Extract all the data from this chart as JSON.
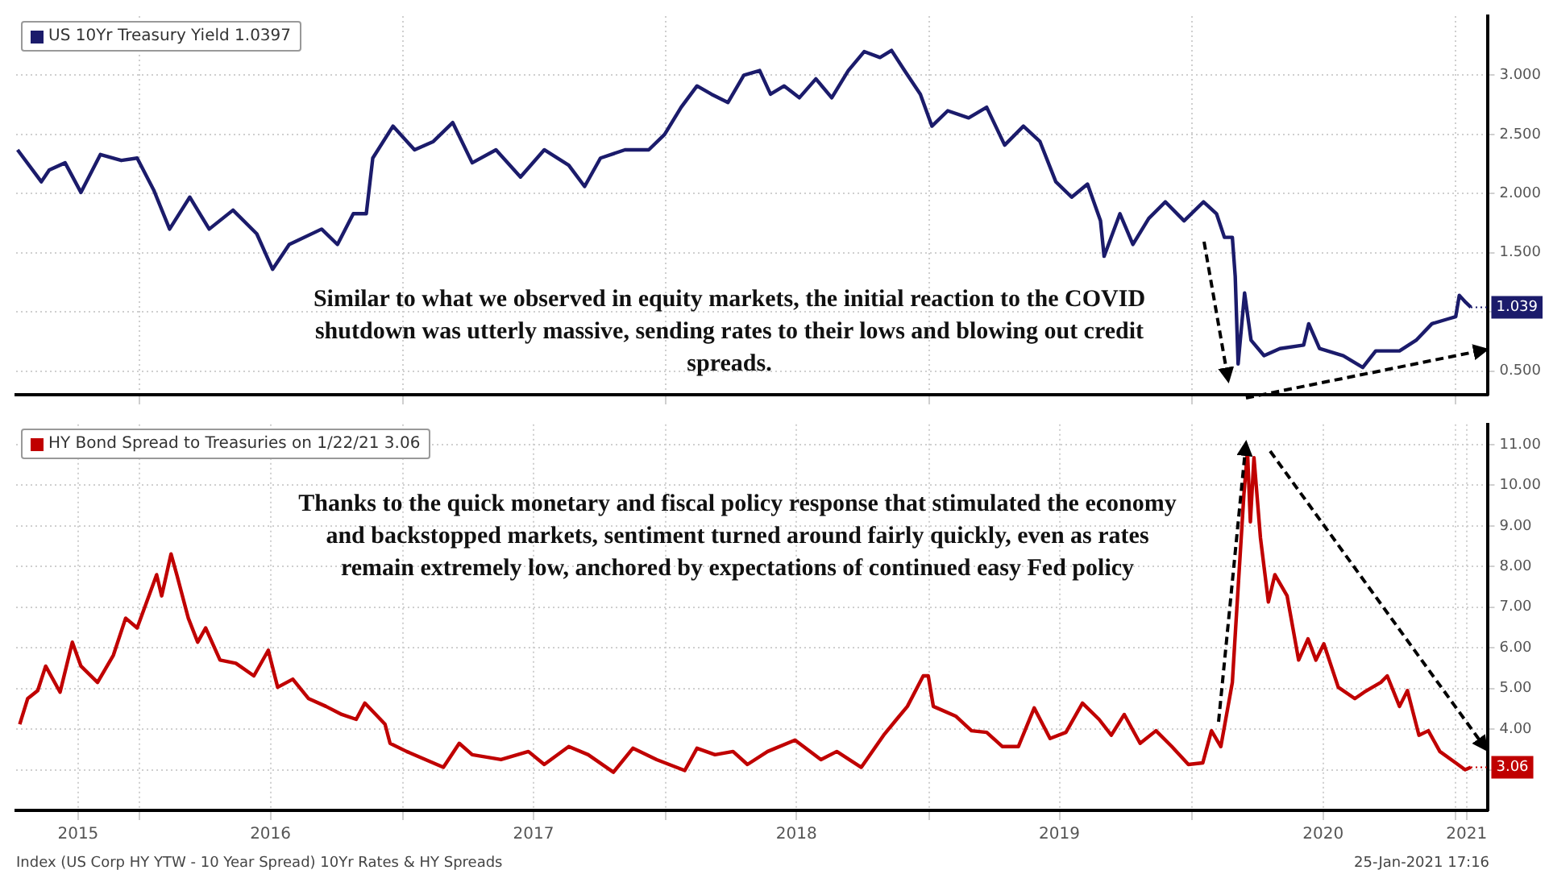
{
  "chart_data": [
    {
      "type": "line",
      "legend": "top left",
      "grid": true,
      "marker": "none",
      "tick_labels": "y",
      "xlim": [
        "2015-07-14",
        "2021-02-15"
      ],
      "xticks": [
        {
          "value": "2016-01-01",
          "label": null
        },
        {
          "value": "2017-01-01",
          "label": null
        },
        {
          "value": "2018-01-01",
          "label": null
        },
        {
          "value": "2019-01-01",
          "label": null
        },
        {
          "value": "2020-01-01",
          "label": null
        },
        {
          "value": "2021-01-01",
          "label": null
        }
      ],
      "ylim": [
        0.3,
        3.5
      ],
      "yticks": [
        {
          "value": 0.5,
          "label": "0.500"
        },
        {
          "value": 1,
          "label": null
        },
        {
          "value": 1.5,
          "label": "1.500"
        },
        {
          "value": 2,
          "label": "2.000"
        },
        {
          "value": 2.5,
          "label": "2.500"
        },
        {
          "value": 3,
          "label": "3.000"
        }
      ],
      "series": [
        {
          "name": "US 10Yr Treasury Yield 1.0397",
          "color": "#1b1b6b",
          "x": [
            "2015-07-16",
            "2015-08-18",
            "2015-08-29",
            "2015-09-20",
            "2015-10-12",
            "2015-11-08",
            "2015-12-07",
            "2015-12-29",
            "2016-01-21",
            "2016-02-12",
            "2016-03-11",
            "2016-04-07",
            "2016-05-10",
            "2016-06-12",
            "2016-07-04",
            "2016-07-27",
            "2016-09-10",
            "2016-10-02",
            "2016-10-24",
            "2016-11-11",
            "2016-11-20",
            "2016-12-18",
            "2017-01-17",
            "2017-02-12",
            "2017-03-11",
            "2017-04-07",
            "2017-05-10",
            "2017-06-13",
            "2017-07-16",
            "2017-08-19",
            "2017-09-10",
            "2017-10-02",
            "2017-11-05",
            "2017-12-08",
            "2017-12-30",
            "2018-01-22",
            "2018-02-13",
            "2018-03-05",
            "2018-03-28",
            "2018-04-19",
            "2018-05-11",
            "2018-05-26",
            "2018-06-14",
            "2018-07-05",
            "2018-07-28",
            "2018-08-19",
            "2018-09-11",
            "2018-10-03",
            "2018-10-25",
            "2018-11-10",
            "2018-11-28",
            "2018-12-20",
            "2019-01-05",
            "2019-01-27",
            "2019-02-25",
            "2019-03-22",
            "2019-04-16",
            "2019-05-12",
            "2019-06-04",
            "2019-06-26",
            "2019-07-18",
            "2019-08-09",
            "2019-08-27",
            "2019-09-01",
            "2019-09-23",
            "2019-10-11",
            "2019-11-02",
            "2019-11-25",
            "2019-12-21",
            "2020-01-17",
            "2020-02-04",
            "2020-02-15",
            "2020-02-26",
            "2020-03-01",
            "2020-03-05",
            "2020-03-14",
            "2020-03-23",
            "2020-04-10",
            "2020-05-02",
            "2020-06-04",
            "2020-06-11",
            "2020-06-26",
            "2020-07-29",
            "2020-08-25",
            "2020-09-12",
            "2020-10-15",
            "2020-11-07",
            "2020-11-29",
            "2020-12-21",
            "2021-01-01",
            "2021-01-06",
            "2021-01-15",
            "2021-01-22"
          ],
          "values": [
            2.37,
            2.1,
            2.2,
            2.26,
            2.01,
            2.33,
            2.28,
            2.3,
            2.03,
            1.7,
            1.97,
            1.7,
            1.86,
            1.66,
            1.36,
            1.57,
            1.7,
            1.57,
            1.83,
            1.83,
            2.3,
            2.57,
            2.37,
            2.44,
            2.6,
            2.26,
            2.37,
            2.14,
            2.37,
            2.24,
            2.06,
            2.3,
            2.37,
            2.37,
            2.5,
            2.73,
            2.91,
            2.84,
            2.77,
            3.0,
            3.04,
            2.84,
            2.91,
            2.81,
            2.97,
            2.81,
            3.04,
            3.2,
            3.15,
            3.21,
            3.04,
            2.84,
            2.57,
            2.7,
            2.64,
            2.73,
            2.41,
            2.57,
            2.44,
            2.1,
            1.97,
            2.08,
            1.77,
            1.47,
            1.83,
            1.57,
            1.79,
            1.93,
            1.77,
            1.93,
            1.83,
            1.63,
            1.63,
            1.3,
            0.56,
            1.16,
            0.76,
            0.63,
            0.69,
            0.72,
            0.9,
            0.69,
            0.63,
            0.53,
            0.67,
            0.67,
            0.76,
            0.9,
            0.94,
            0.96,
            1.14,
            1.08,
            1.04
          ]
        }
      ],
      "annotations": [
        "Similar to what we observed in equity markets, the initial reaction to the COVID shutdown was utterly massive, sending rates to their lows and blowing out credit spreads.",
        {
          "text": "1.039",
          "x": "2021-01-22",
          "y": 1.039
        }
      ]
    },
    {
      "type": "line",
      "legend": "top left",
      "grid": true,
      "marker": "none",
      "xlim": [
        "2015-07-14",
        "2021-02-15"
      ],
      "xticks": [
        {
          "value": "2015-10-08",
          "label": "2015"
        },
        {
          "value": "2016-01-01",
          "label": null
        },
        {
          "value": "2016-07-01",
          "label": "2016"
        },
        {
          "value": "2017-01-01",
          "label": null
        },
        {
          "value": "2017-07-01",
          "label": "2017"
        },
        {
          "value": "2018-01-01",
          "label": null
        },
        {
          "value": "2018-07-01",
          "label": "2018"
        },
        {
          "value": "2019-01-01",
          "label": null
        },
        {
          "value": "2019-07-01",
          "label": "2019"
        },
        {
          "value": "2020-01-01",
          "label": null
        },
        {
          "value": "2020-07-01",
          "label": "2020"
        },
        {
          "value": "2021-01-01",
          "label": null
        },
        {
          "value": "2021-01-16",
          "label": "2021"
        }
      ],
      "ylim": [
        2.0,
        11.5
      ],
      "yticks": [
        {
          "value": 3,
          "label": null
        },
        {
          "value": 4,
          "label": "4.00"
        },
        {
          "value": 5,
          "label": "5.00"
        },
        {
          "value": 6,
          "label": "6.00"
        },
        {
          "value": 7,
          "label": "7.00"
        },
        {
          "value": 8,
          "label": "8.00"
        },
        {
          "value": 9,
          "label": "9.00"
        },
        {
          "value": 10,
          "label": "10.00"
        },
        {
          "value": 11,
          "label": "11.00"
        }
      ],
      "series": [
        {
          "name": "HY Bond Spread to Treasuries on 1/22/21 3.06",
          "color": "#c00000",
          "x": [
            "2015-07-19",
            "2015-07-30",
            "2015-08-13",
            "2015-08-24",
            "2015-09-13",
            "2015-09-30",
            "2015-10-12",
            "2015-11-04",
            "2015-11-26",
            "2015-12-13",
            "2015-12-29",
            "2016-01-25",
            "2016-02-01",
            "2016-02-14",
            "2016-02-22",
            "2016-03-09",
            "2016-03-22",
            "2016-04-02",
            "2016-04-22",
            "2016-05-14",
            "2016-06-08",
            "2016-06-28",
            "2016-07-11",
            "2016-08-01",
            "2016-08-23",
            "2016-09-16",
            "2016-10-08",
            "2016-10-28",
            "2016-11-09",
            "2016-12-07",
            "2016-12-14",
            "2017-01-06",
            "2017-02-26",
            "2017-03-20",
            "2017-04-07",
            "2017-05-17",
            "2017-06-24",
            "2017-07-16",
            "2017-08-19",
            "2017-09-15",
            "2017-10-20",
            "2017-11-16",
            "2017-12-19",
            "2018-01-27",
            "2018-02-13",
            "2018-03-10",
            "2018-04-04",
            "2018-04-24",
            "2018-05-22",
            "2018-06-29",
            "2018-08-04",
            "2018-08-26",
            "2018-09-29",
            "2018-10-30",
            "2018-11-17",
            "2018-12-02",
            "2018-12-24",
            "2018-12-31",
            "2019-01-07",
            "2019-02-07",
            "2019-03-01",
            "2019-03-22",
            "2019-04-13",
            "2019-05-05",
            "2019-05-27",
            "2019-06-18",
            "2019-07-10",
            "2019-08-02",
            "2019-08-25",
            "2019-09-11",
            "2019-09-29",
            "2019-10-21",
            "2019-11-12",
            "2019-12-04",
            "2019-12-27",
            "2020-01-16",
            "2020-01-28",
            "2020-02-10",
            "2020-02-26",
            "2020-03-02",
            "2020-03-13",
            "2020-03-18",
            "2020-03-22",
            "2020-03-27",
            "2020-04-05",
            "2020-04-16",
            "2020-04-25",
            "2020-05-12",
            "2020-05-28",
            "2020-06-10",
            "2020-06-21",
            "2020-07-02",
            "2020-07-22",
            "2020-08-14",
            "2020-08-27",
            "2020-09-19",
            "2020-09-28",
            "2020-10-15",
            "2020-10-26",
            "2020-11-11",
            "2020-11-24",
            "2020-12-10",
            "2021-01-01",
            "2021-01-14",
            "2021-01-22"
          ],
          "values": [
            4.12,
            4.75,
            4.95,
            5.55,
            4.91,
            6.14,
            5.55,
            5.15,
            5.82,
            6.73,
            6.49,
            7.8,
            7.28,
            8.31,
            7.8,
            6.73,
            6.14,
            6.49,
            5.7,
            5.62,
            5.31,
            5.94,
            5.03,
            5.23,
            4.75,
            4.56,
            4.36,
            4.24,
            4.64,
            4.12,
            3.65,
            3.45,
            3.06,
            3.65,
            3.37,
            3.25,
            3.45,
            3.13,
            3.57,
            3.37,
            2.94,
            3.53,
            3.25,
            2.98,
            3.53,
            3.37,
            3.45,
            3.13,
            3.45,
            3.73,
            3.25,
            3.45,
            3.06,
            3.85,
            4.24,
            4.56,
            5.31,
            5.31,
            4.56,
            4.32,
            3.96,
            3.92,
            3.57,
            3.57,
            4.52,
            3.77,
            3.92,
            4.64,
            4.24,
            3.85,
            4.36,
            3.65,
            3.96,
            3.57,
            3.13,
            3.17,
            3.96,
            3.57,
            5.15,
            6.61,
            9.77,
            10.84,
            9.1,
            10.68,
            8.71,
            7.13,
            7.8,
            7.28,
            5.7,
            6.22,
            5.7,
            6.1,
            5.03,
            4.75,
            4.91,
            5.15,
            5.31,
            4.56,
            4.95,
            3.85,
            3.96,
            3.45,
            3.17,
            3.0,
            3.06
          ]
        }
      ],
      "annotations": [
        "Thanks to the quick monetary and fiscal policy response that stimulated the economy and backstopped markets, sentiment turned around fairly quickly, even as rates remain extremely low, anchored by expectations of continued easy Fed policy",
        {
          "text": "3.06",
          "x": "2021-01-22",
          "y": 3.06
        },
        "Index (US Corp HY YTW - 10 Year Spread) 10Yr Rates & HY Spreads",
        "25-Jan-2021 17:16"
      ]
    }
  ]
}
